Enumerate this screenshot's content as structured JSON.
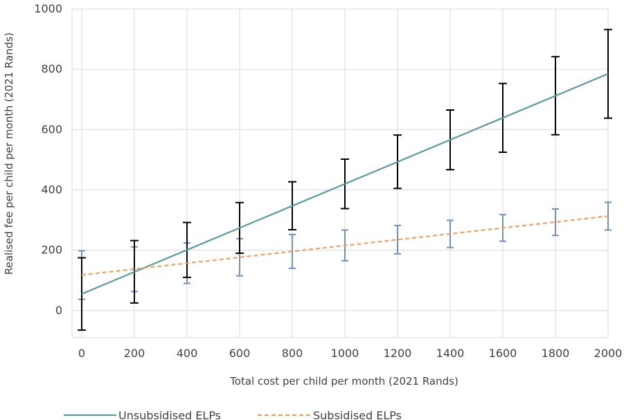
{
  "chart_data": {
    "type": "line",
    "xlabel": "Total cost per child per month (2021 Rands)",
    "ylabel": "Realised fee per child per month (2021 Rands)",
    "xlim": [
      0,
      2000
    ],
    "ylim": [
      -90,
      1000
    ],
    "x_ticks": [
      "0",
      "200",
      "400",
      "600",
      "800",
      "1000",
      "1200",
      "1400",
      "1600",
      "1800",
      "2000"
    ],
    "y_ticks": [
      "0",
      "200",
      "400",
      "600",
      "800",
      "1000"
    ],
    "grid": true,
    "legend_position": "bottom",
    "x": [
      0,
      200,
      400,
      600,
      800,
      1000,
      1200,
      1400,
      1600,
      1800,
      2000
    ],
    "series": [
      {
        "name": "Unsubsidised ELPs",
        "color": "#5b9aa0",
        "error_color": "#000000",
        "line_style": "solid",
        "values": [
          55,
          128,
          201,
          274,
          347,
          420,
          493,
          566,
          639,
          712,
          785
        ],
        "error_low": [
          -65,
          25,
          110,
          190,
          268,
          338,
          405,
          467,
          525,
          583,
          638
        ],
        "error_high": [
          175,
          232,
          292,
          358,
          427,
          502,
          582,
          665,
          753,
          842,
          932
        ]
      },
      {
        "name": "Subsidised ELPs",
        "color": "#f0a060",
        "error_color": "#6f8fc8",
        "line_style": "dashed",
        "values": [
          118,
          137.5,
          157,
          176.5,
          196,
          215.5,
          235,
          254.5,
          274,
          293.5,
          313
        ],
        "error_low": [
          37,
          63,
          90,
          115,
          140,
          165,
          188,
          209,
          230,
          249,
          267
        ],
        "error_high": [
          198,
          211,
          224,
          238,
          252,
          267,
          282,
          299,
          318,
          337,
          359
        ]
      }
    ]
  }
}
